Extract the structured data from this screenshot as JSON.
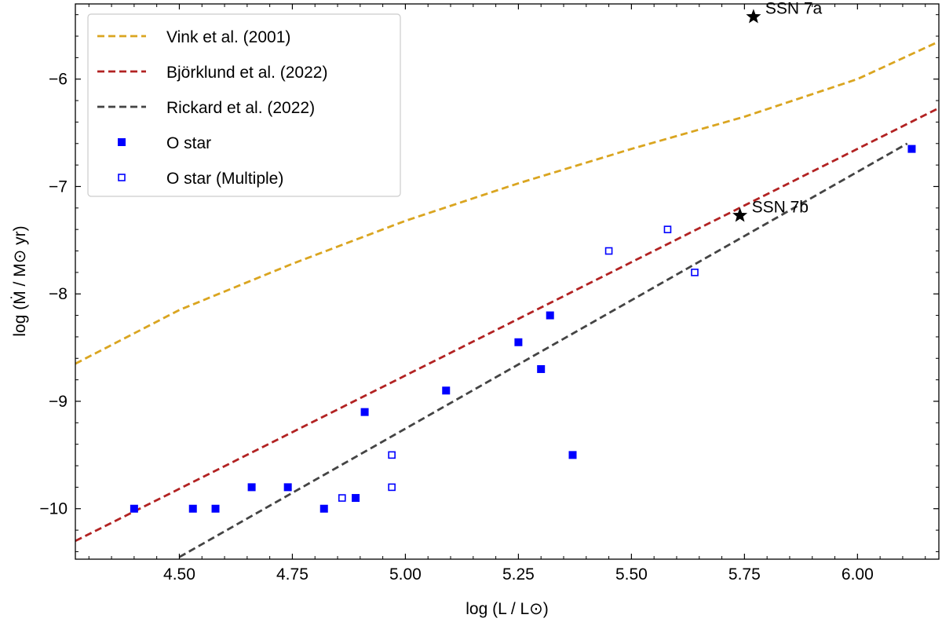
{
  "chart_data": {
    "type": "scatter",
    "title": "",
    "xlabel": "log (L / L⊙)",
    "ylabel": "log (Ṁ / M⊙ yr)",
    "xlim": [
      4.27,
      6.18
    ],
    "ylim": [
      -10.47,
      -5.3
    ],
    "xticks": [
      4.5,
      4.75,
      5.0,
      5.25,
      5.5,
      5.75,
      6.0
    ],
    "xtick_labels": [
      "4.50",
      "4.75",
      "5.00",
      "5.25",
      "5.50",
      "5.75",
      "6.00"
    ],
    "yticks": [
      -10,
      -9,
      -8,
      -7,
      -6
    ],
    "ytick_labels": [
      "−10",
      "−9",
      "−8",
      "−7",
      "−6"
    ],
    "legend_position": "top-left",
    "lines": [
      {
        "name": "Vink et al. (2001)",
        "color": "#DAA520",
        "style": "dashed",
        "x": [
          4.27,
          4.5,
          4.75,
          5.0,
          5.25,
          5.5,
          5.75,
          6.0,
          6.18
        ],
        "y": [
          -8.65,
          -8.15,
          -7.72,
          -7.32,
          -6.97,
          -6.65,
          -6.35,
          -6.0,
          -5.65
        ]
      },
      {
        "name": "Björklund et al. (2022)",
        "color": "#B22222",
        "style": "dashed",
        "x": [
          4.27,
          6.18
        ],
        "y": [
          -10.3,
          -6.27
        ]
      },
      {
        "name": "Rickard et al. (2022)",
        "color": "#444444",
        "style": "dashed",
        "x": [
          4.5,
          6.11
        ],
        "y": [
          -10.45,
          -6.6
        ]
      }
    ],
    "series": [
      {
        "name": "O star",
        "marker": "filled-square",
        "color": "#0000FF",
        "x": [
          4.4,
          4.53,
          4.58,
          4.66,
          4.74,
          4.82,
          4.89,
          4.91,
          5.09,
          5.25,
          5.3,
          5.32,
          5.37,
          6.12
        ],
        "y": [
          -10.0,
          -10.0,
          -10.0,
          -9.8,
          -9.8,
          -10.0,
          -9.9,
          -9.1,
          -8.9,
          -8.45,
          -8.7,
          -8.2,
          -9.5,
          -6.65
        ]
      },
      {
        "name": "O star (Multiple)",
        "marker": "open-square",
        "color": "#0000FF",
        "x": [
          4.86,
          4.97,
          4.97,
          5.45,
          5.58,
          5.64
        ],
        "y": [
          -9.9,
          -9.5,
          -9.8,
          -7.6,
          -7.4,
          -7.8
        ]
      }
    ],
    "annotations": [
      {
        "label": "SSN 7a",
        "x": 5.77,
        "y": -5.42,
        "marker": "star",
        "color": "#000000"
      },
      {
        "label": "SSN 7b",
        "x": 5.74,
        "y": -7.27,
        "marker": "star",
        "color": "#000000"
      }
    ]
  }
}
